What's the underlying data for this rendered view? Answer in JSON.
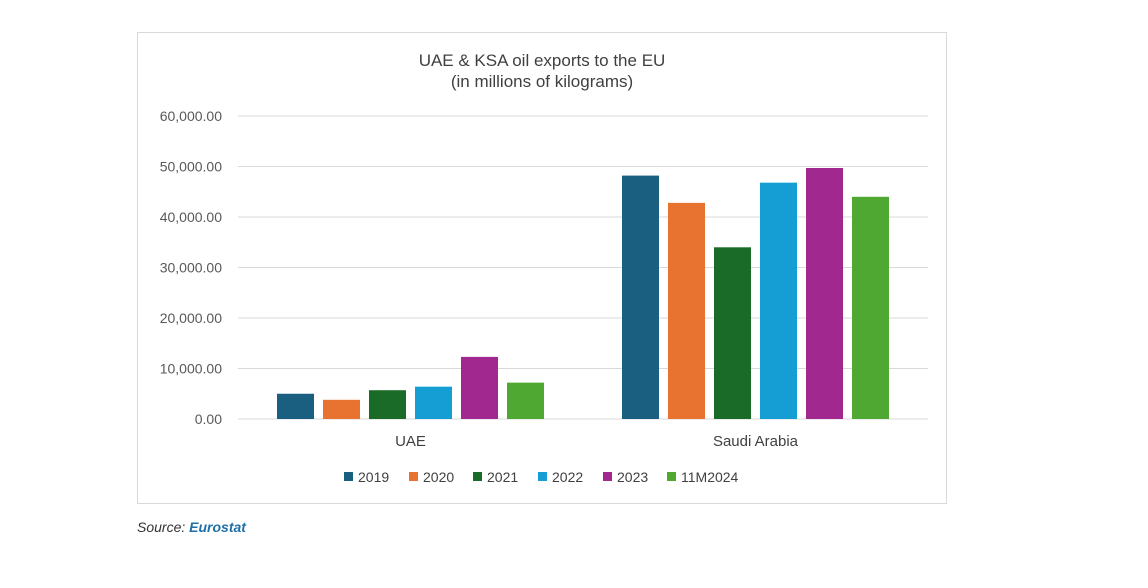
{
  "chart_data": {
    "type": "bar",
    "title": "UAE & KSA oil exports to the EU",
    "subtitle": "(in millions of kilograms)",
    "categories": [
      "UAE",
      "Saudi Arabia"
    ],
    "series": [
      {
        "name": "2019",
        "color": "#1a5e80",
        "values": [
          5000,
          48200
        ]
      },
      {
        "name": "2020",
        "color": "#e87330",
        "values": [
          3800,
          42800
        ]
      },
      {
        "name": "2021",
        "color": "#1b6b28",
        "values": [
          5700,
          34000
        ]
      },
      {
        "name": "2022",
        "color": "#149ed4",
        "values": [
          6400,
          46800
        ]
      },
      {
        "name": "2023",
        "color": "#a0288f",
        "values": [
          12300,
          49700
        ]
      },
      {
        "name": "11M2024",
        "color": "#4ea832",
        "values": [
          7200,
          44000
        ]
      }
    ],
    "ylim": [
      0,
      60000
    ],
    "yticks": [
      "0.00",
      "10,000.00",
      "20,000.00",
      "30,000.00",
      "40,000.00",
      "50,000.00",
      "60,000.00"
    ],
    "xlabel": "",
    "ylabel": "",
    "grid": true,
    "legend_position": "bottom"
  },
  "source": {
    "prefix": "Source: ",
    "link_text": "Eurostat"
  }
}
